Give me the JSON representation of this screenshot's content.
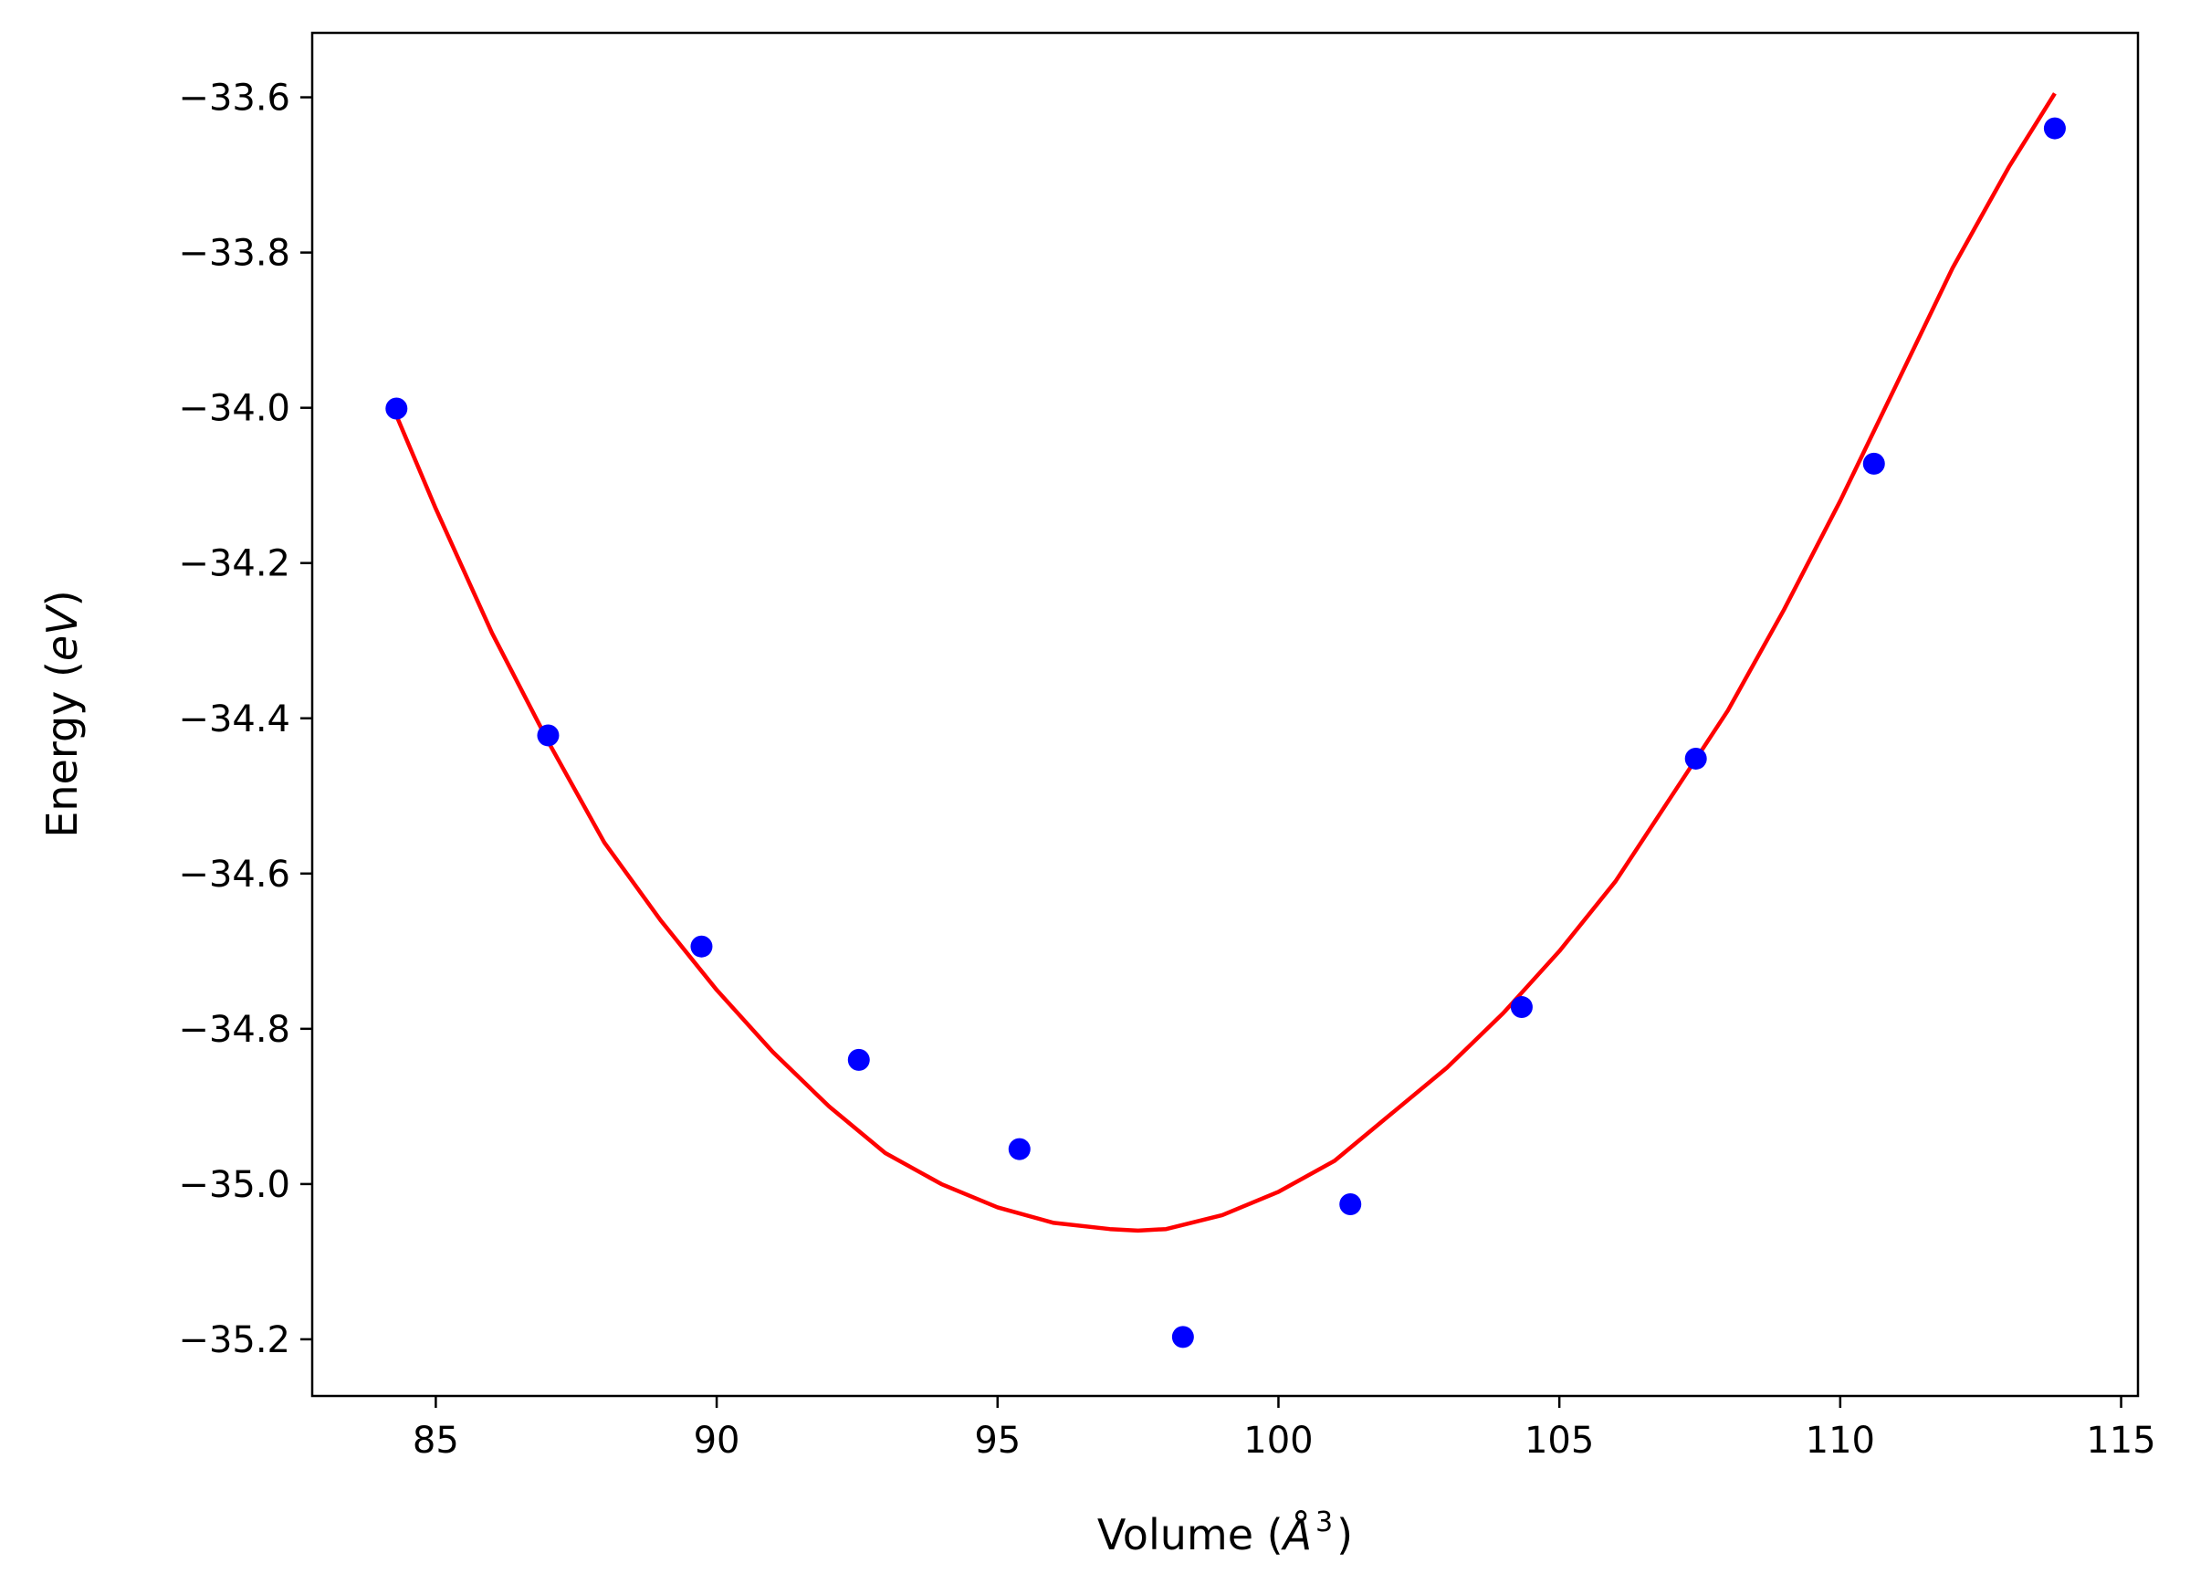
{
  "chart_data": {
    "type": "scatter",
    "title": "",
    "xlabel": "Volume",
    "xlabel_unit_prefix": "(",
    "xlabel_unit_base": "Å",
    "xlabel_unit_sup": "3",
    "xlabel_unit_suffix": ")",
    "ylabel": "Energy",
    "ylabel_unit_prefix": "(",
    "ylabel_unit": "eV",
    "ylabel_unit_suffix": ")",
    "xlim": [
      82.8,
      115.3
    ],
    "ylim": [
      -35.273,
      -33.517
    ],
    "grid": false,
    "legend": "none",
    "x_ticks": [
      {
        "value": 85,
        "label": "85"
      },
      {
        "value": 90,
        "label": "90"
      },
      {
        "value": 95,
        "label": "95"
      },
      {
        "value": 100,
        "label": "100"
      },
      {
        "value": 105,
        "label": "105"
      },
      {
        "value": 110,
        "label": "110"
      },
      {
        "value": 115,
        "label": "115"
      }
    ],
    "y_ticks": [
      {
        "value": -33.6,
        "label": "−33.6"
      },
      {
        "value": -33.8,
        "label": "−33.8"
      },
      {
        "value": -34.0,
        "label": "−34.0"
      },
      {
        "value": -34.2,
        "label": "−34.2"
      },
      {
        "value": -34.4,
        "label": "−34.4"
      },
      {
        "value": -34.6,
        "label": "−34.6"
      },
      {
        "value": -34.8,
        "label": "−34.8"
      },
      {
        "value": -35.0,
        "label": "−35.0"
      },
      {
        "value": -35.2,
        "label": "−35.2"
      }
    ],
    "series": [
      {
        "kind": "scatter",
        "color": "#0000ff",
        "x": [
          84.3,
          87.0,
          89.73,
          92.53,
          95.39,
          98.3,
          101.28,
          104.33,
          107.43,
          110.6,
          113.82
        ],
        "y": [
          -34.001,
          -34.422,
          -34.694,
          -34.84,
          -34.955,
          -35.197,
          -35.026,
          -34.772,
          -34.452,
          -34.072,
          -33.64
        ]
      },
      {
        "kind": "line",
        "color": "#ff0000",
        "x": [
          84.3,
          85.0,
          86.0,
          87.0,
          88.0,
          89.0,
          90.0,
          91.0,
          92.0,
          93.0,
          94.0,
          95.0,
          96.0,
          97.0,
          97.5,
          98.0,
          99.0,
          100.0,
          101.0,
          102.0,
          103.0,
          104.0,
          105.0,
          106.0,
          107.0,
          108.0,
          109.0,
          110.0,
          111.0,
          112.0,
          113.0,
          113.82
        ],
        "y": [
          -34.01,
          -34.13,
          -34.29,
          -34.43,
          -34.56,
          -34.66,
          -34.75,
          -34.83,
          -34.9,
          -34.96,
          -35.0,
          -35.03,
          -35.05,
          -35.058,
          -35.06,
          -35.058,
          -35.04,
          -35.01,
          -34.97,
          -34.91,
          -34.85,
          -34.78,
          -34.7,
          -34.61,
          -34.5,
          -34.39,
          -34.26,
          -34.12,
          -33.97,
          -33.82,
          -33.69,
          -33.595
        ]
      }
    ]
  }
}
